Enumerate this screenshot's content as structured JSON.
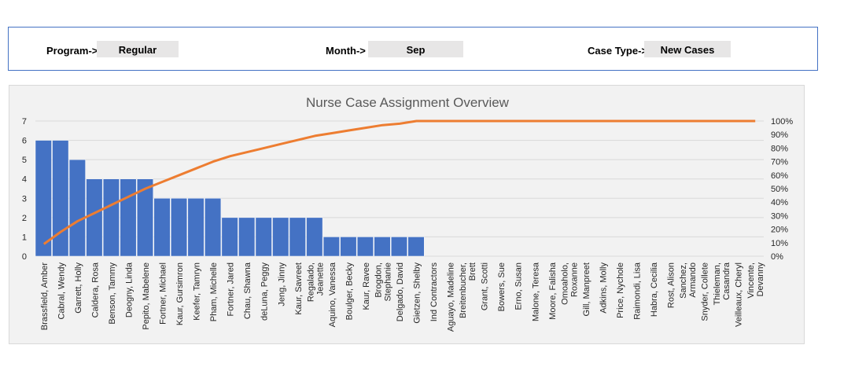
{
  "filters": {
    "program_label": "Program->",
    "program_value": "Regular",
    "month_label": "Month->",
    "month_value": "Sep",
    "case_type_label": "Case Type->",
    "case_type_value": "New Cases"
  },
  "colors": {
    "bar": "#4472c4",
    "line": "#ed7d31",
    "grid": "#d9d9d9",
    "panel": "#f2f2f2"
  },
  "chart_data": {
    "type": "bar",
    "title": "Nurse Case Assignment Overview",
    "categories": [
      [
        "Brassfield, Amber"
      ],
      [
        "Cabral, Wendy"
      ],
      [
        "Garrett, Holly"
      ],
      [
        "Caldera, Rosa"
      ],
      [
        "Benson, Tammy"
      ],
      [
        "Deogny, Linda"
      ],
      [
        "Pepito, Mabelene"
      ],
      [
        "Fortner, Michael"
      ],
      [
        "Kaur, Gursimron"
      ],
      [
        "Keefer, Tamryn"
      ],
      [
        "Pham, Michelle"
      ],
      [
        "Fortner, Jared"
      ],
      [
        "Chau, Shawna"
      ],
      [
        "deLuna, Peggy"
      ],
      [
        "Jeng, Jinny"
      ],
      [
        "Kaur, Savreet"
      ],
      [
        "Regalado,",
        "Jeanette"
      ],
      [
        "Aquino, Vanessa"
      ],
      [
        "Boulger, Becky"
      ],
      [
        "Kaur, Ravee"
      ],
      [
        "Brogdon,",
        "Stephanie"
      ],
      [
        "Delgado, David"
      ],
      [
        "Gietzen, Shelby"
      ],
      [
        "Ind Contractors"
      ],
      [
        "Aguayo, Madeline"
      ],
      [
        "Breitenbucher,",
        "Brett"
      ],
      [
        "Grant, Scotti"
      ],
      [
        "Bowers, Sue"
      ],
      [
        "Erno, Susan"
      ],
      [
        "Malone, Teresa"
      ],
      [
        "Moore, Falisha"
      ],
      [
        "Omoaholo,",
        "Roxanne"
      ],
      [
        "Gill, Manpreet"
      ],
      [
        "Adkins, Molly"
      ],
      [
        "Price, Nychole"
      ],
      [
        "Raimondi, Lisa"
      ],
      [
        "Habra, Cecilia"
      ],
      [
        "Rost, Alison"
      ],
      [
        "Sanchez,",
        "Armando"
      ],
      [
        "Snyder, Collete"
      ],
      [
        "Thieleman,",
        "Casandra"
      ],
      [
        "Veilleaux, Cheryl"
      ],
      [
        "Vincente,",
        "Devanny"
      ]
    ],
    "series": [
      {
        "type": "bar",
        "axis": "left",
        "values": [
          6,
          6,
          5,
          4,
          4,
          4,
          4,
          3,
          3,
          3,
          3,
          2,
          2,
          2,
          2,
          2,
          2,
          1,
          1,
          1,
          1,
          1,
          1,
          0,
          0,
          0,
          0,
          0,
          0,
          0,
          0,
          0,
          0,
          0,
          0,
          0,
          0,
          0,
          0,
          0,
          0,
          0,
          0
        ]
      },
      {
        "type": "line",
        "axis": "right",
        "values": [
          0.09,
          0.18,
          0.26,
          0.32,
          0.38,
          0.44,
          0.5,
          0.55,
          0.6,
          0.65,
          0.7,
          0.74,
          0.77,
          0.8,
          0.83,
          0.86,
          0.89,
          0.91,
          0.93,
          0.95,
          0.97,
          0.98,
          1.0,
          1.0,
          1.0,
          1.0,
          1.0,
          1.0,
          1.0,
          1.0,
          1.0,
          1.0,
          1.0,
          1.0,
          1.0,
          1.0,
          1.0,
          1.0,
          1.0,
          1.0,
          1.0,
          1.0,
          1.0
        ]
      }
    ],
    "y_left": {
      "min": 0,
      "max": 7,
      "ticks": [
        "0",
        "1",
        "2",
        "3",
        "4",
        "5",
        "6",
        "7"
      ]
    },
    "y_right": {
      "min": 0,
      "max": 1,
      "ticks": [
        "0%",
        "10%",
        "20%",
        "30%",
        "40%",
        "50%",
        "60%",
        "70%",
        "80%",
        "90%",
        "100%"
      ]
    },
    "grid": true,
    "legend": "none"
  }
}
